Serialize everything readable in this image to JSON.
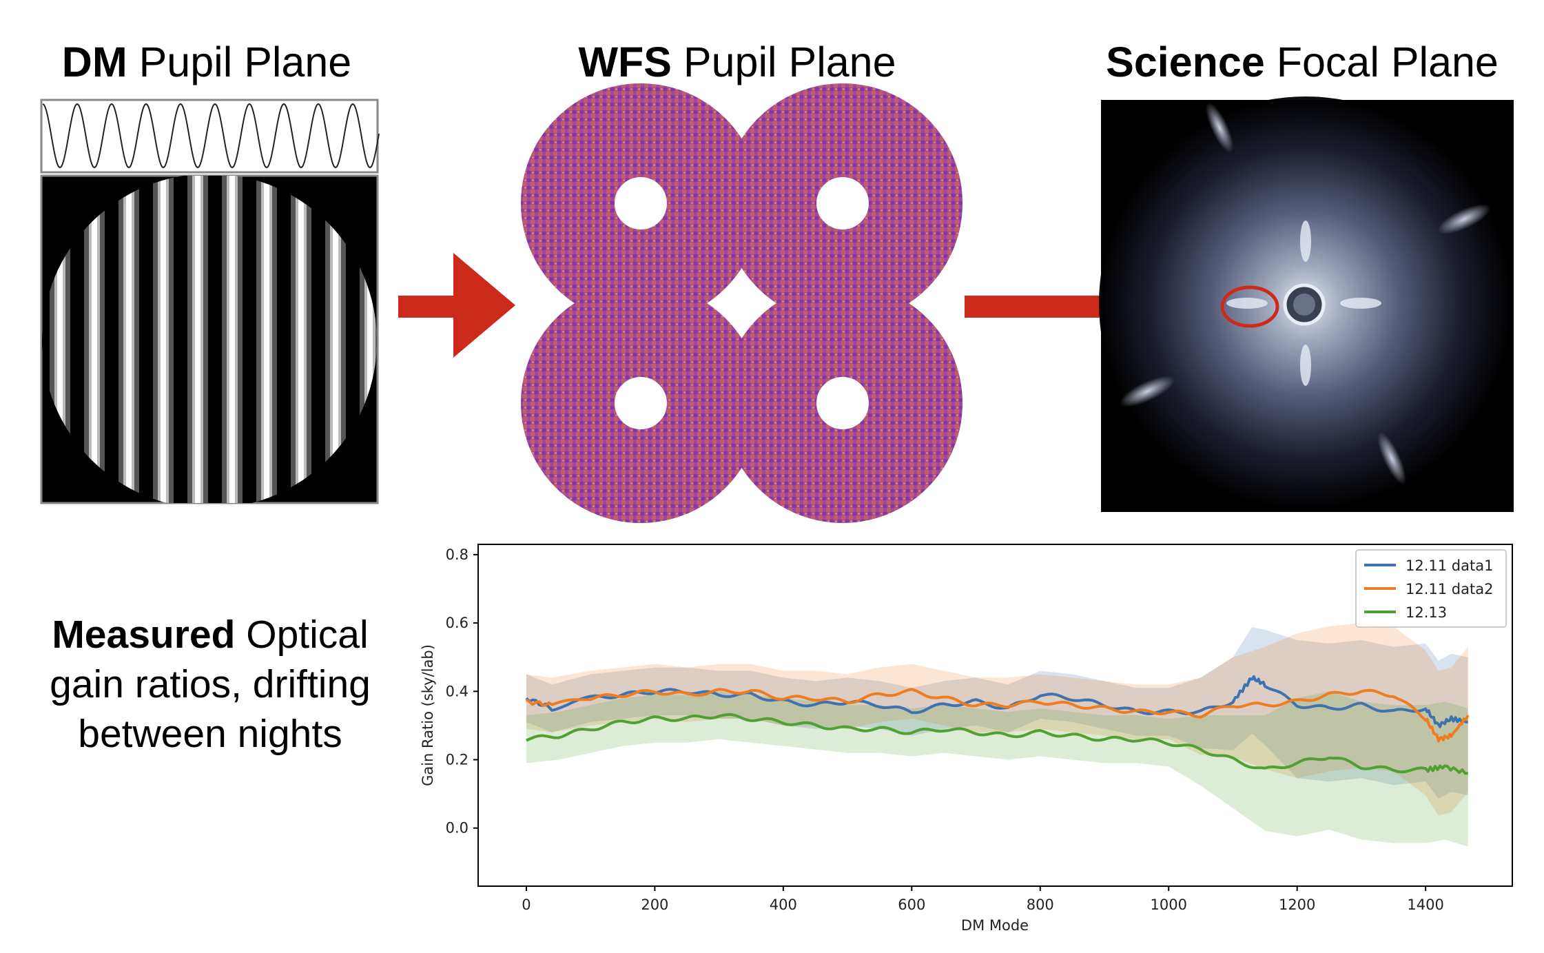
{
  "panels": [
    {
      "bold": "DM",
      "rest": " Pupil Plane"
    },
    {
      "bold": "WFS",
      "rest": " Pupil Plane"
    },
    {
      "bold": "Science",
      "rest": " Focal Plane"
    }
  ],
  "caption": {
    "bold": "Measured",
    "rest_line1": " Optical",
    "line2": "gain ratios, drifting",
    "line3": "between nights"
  },
  "colors": {
    "arrow": "#cc2a1a",
    "series1": "#3f72af",
    "series2": "#ee7d1f",
    "series3": "#50a033"
  },
  "chart_data": {
    "type": "line",
    "xlabel": "DM Mode",
    "ylabel": "Gain Ratio (sky/lab)",
    "xlim": [
      -75,
      1535
    ],
    "ylim": [
      -0.17,
      0.83
    ],
    "xticks": [
      0,
      200,
      400,
      600,
      800,
      1000,
      1200,
      1400
    ],
    "yticks": [
      0.0,
      0.2,
      0.4,
      0.6,
      0.8
    ],
    "legend_position": "top-right",
    "series": [
      {
        "name": "12.11 data1",
        "x": [
          0,
          40,
          100,
          150,
          200,
          250,
          300,
          350,
          400,
          450,
          500,
          550,
          600,
          650,
          700,
          750,
          800,
          850,
          900,
          950,
          1000,
          1050,
          1100,
          1130,
          1150,
          1200,
          1250,
          1300,
          1350,
          1400,
          1420,
          1440,
          1466
        ],
        "y": [
          0.38,
          0.35,
          0.38,
          0.39,
          0.4,
          0.4,
          0.39,
          0.39,
          0.37,
          0.36,
          0.37,
          0.36,
          0.34,
          0.36,
          0.37,
          0.35,
          0.39,
          0.38,
          0.36,
          0.34,
          0.34,
          0.34,
          0.37,
          0.44,
          0.42,
          0.36,
          0.35,
          0.36,
          0.34,
          0.35,
          0.3,
          0.32,
          0.31
        ],
        "band": [
          0.3,
          0.44
        ]
      },
      {
        "name": "12.11 data2",
        "x": [
          0,
          40,
          100,
          150,
          200,
          250,
          300,
          350,
          400,
          450,
          500,
          550,
          600,
          650,
          700,
          750,
          800,
          850,
          900,
          950,
          1000,
          1050,
          1100,
          1150,
          1200,
          1250,
          1300,
          1350,
          1400,
          1420,
          1440,
          1466
        ],
        "y": [
          0.37,
          0.36,
          0.38,
          0.39,
          0.4,
          0.39,
          0.4,
          0.4,
          0.38,
          0.38,
          0.37,
          0.39,
          0.4,
          0.38,
          0.36,
          0.36,
          0.37,
          0.36,
          0.35,
          0.34,
          0.34,
          0.33,
          0.36,
          0.36,
          0.37,
          0.39,
          0.4,
          0.39,
          0.32,
          0.26,
          0.27,
          0.33
        ],
        "band": [
          0.29,
          0.45
        ]
      },
      {
        "name": "12.13",
        "x": [
          0,
          50,
          100,
          150,
          200,
          250,
          300,
          350,
          400,
          450,
          500,
          550,
          600,
          650,
          700,
          750,
          800,
          850,
          900,
          950,
          1000,
          1050,
          1100,
          1150,
          1200,
          1250,
          1300,
          1350,
          1400,
          1430,
          1466
        ],
        "y": [
          0.26,
          0.27,
          0.29,
          0.31,
          0.32,
          0.32,
          0.33,
          0.32,
          0.31,
          0.3,
          0.29,
          0.29,
          0.28,
          0.29,
          0.28,
          0.27,
          0.28,
          0.27,
          0.26,
          0.26,
          0.25,
          0.23,
          0.2,
          0.17,
          0.19,
          0.21,
          0.18,
          0.17,
          0.17,
          0.18,
          0.16
        ],
        "band": [
          0.2,
          0.34
        ]
      }
    ]
  }
}
